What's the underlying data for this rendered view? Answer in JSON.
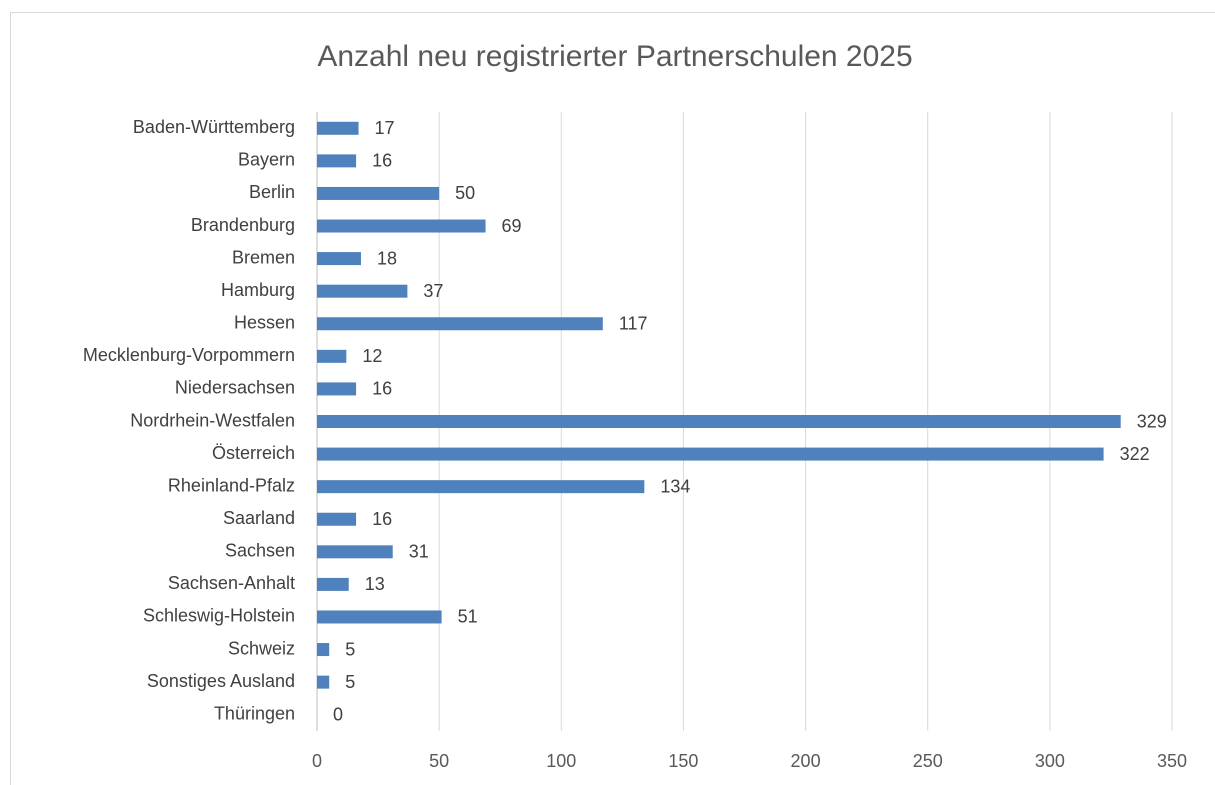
{
  "chart_data": {
    "type": "barh",
    "title": "Anzahl neu registrierter Partnerschulen 2025",
    "categories": [
      "Baden-Württemberg",
      "Bayern",
      "Berlin",
      "Brandenburg",
      "Bremen",
      "Hamburg",
      "Hessen",
      "Mecklenburg-Vorpommern",
      "Niedersachsen",
      "Nordrhein-Westfalen",
      "Österreich",
      "Rheinland-Pfalz",
      "Saarland",
      "Sachsen",
      "Sachsen-Anhalt",
      "Schleswig-Holstein",
      "Schweiz",
      "Sonstiges Ausland",
      "Thüringen"
    ],
    "values": [
      17,
      16,
      50,
      69,
      18,
      37,
      117,
      12,
      16,
      329,
      322,
      134,
      16,
      31,
      13,
      51,
      5,
      5,
      0
    ],
    "color": "#4f81bd",
    "xlim": [
      0,
      350
    ],
    "xticks": [
      0,
      50,
      100,
      150,
      200,
      250,
      300,
      350
    ],
    "grid": true,
    "data_labels": true
  }
}
